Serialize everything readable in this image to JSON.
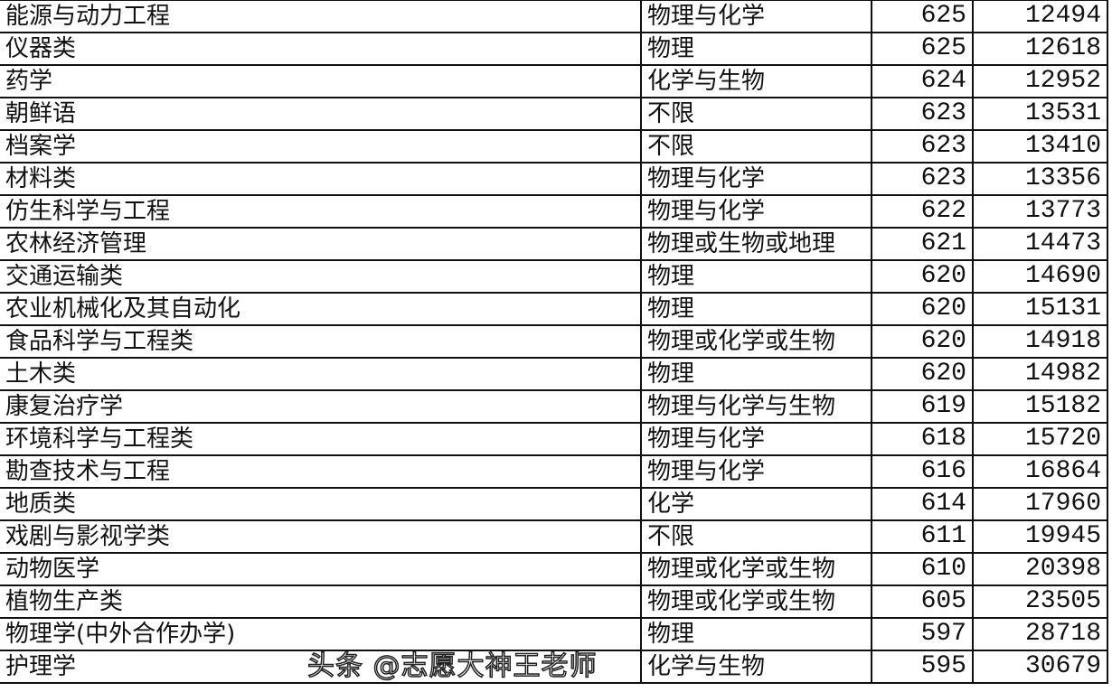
{
  "rows": [
    {
      "major": "能源与动力工程",
      "subject": "物理与化学",
      "score": "625",
      "rank": "12494"
    },
    {
      "major": "仪器类",
      "subject": "物理",
      "score": "625",
      "rank": "12618"
    },
    {
      "major": "药学",
      "subject": "化学与生物",
      "score": "624",
      "rank": "12952"
    },
    {
      "major": "朝鲜语",
      "subject": "不限",
      "score": "623",
      "rank": "13531"
    },
    {
      "major": "档案学",
      "subject": "不限",
      "score": "623",
      "rank": "13410"
    },
    {
      "major": "材料类",
      "subject": "物理与化学",
      "score": "623",
      "rank": "13356"
    },
    {
      "major": "仿生科学与工程",
      "subject": "物理与化学",
      "score": "622",
      "rank": "13773"
    },
    {
      "major": "农林经济管理",
      "subject": "物理或生物或地理",
      "score": "621",
      "rank": "14473"
    },
    {
      "major": "交通运输类",
      "subject": "物理",
      "score": "620",
      "rank": "14690"
    },
    {
      "major": "农业机械化及其自动化",
      "subject": "物理",
      "score": "620",
      "rank": "15131"
    },
    {
      "major": "食品科学与工程类",
      "subject": "物理或化学或生物",
      "score": "620",
      "rank": "14918"
    },
    {
      "major": "土木类",
      "subject": "物理",
      "score": "620",
      "rank": "14982"
    },
    {
      "major": "康复治疗学",
      "subject": "物理与化学与生物",
      "score": "619",
      "rank": "15182"
    },
    {
      "major": "环境科学与工程类",
      "subject": "物理与化学",
      "score": "618",
      "rank": "15720"
    },
    {
      "major": "勘查技术与工程",
      "subject": "物理与化学",
      "score": "616",
      "rank": "16864"
    },
    {
      "major": "地质类",
      "subject": "化学",
      "score": "614",
      "rank": "17960"
    },
    {
      "major": "戏剧与影视学类",
      "subject": "不限",
      "score": "611",
      "rank": "19945"
    },
    {
      "major": "动物医学",
      "subject": "物理或化学或生物",
      "score": "610",
      "rank": "20398"
    },
    {
      "major": "植物生产类",
      "subject": "物理或化学或生物",
      "score": "605",
      "rank": "23505"
    },
    {
      "major": "物理学(中外合作办学)",
      "subject": "物理",
      "score": "597",
      "rank": "28718"
    },
    {
      "major": "护理学",
      "subject": "化学与生物",
      "score": "595",
      "rank": "30679"
    }
  ],
  "watermark": "头条 @志愿大神王老师"
}
